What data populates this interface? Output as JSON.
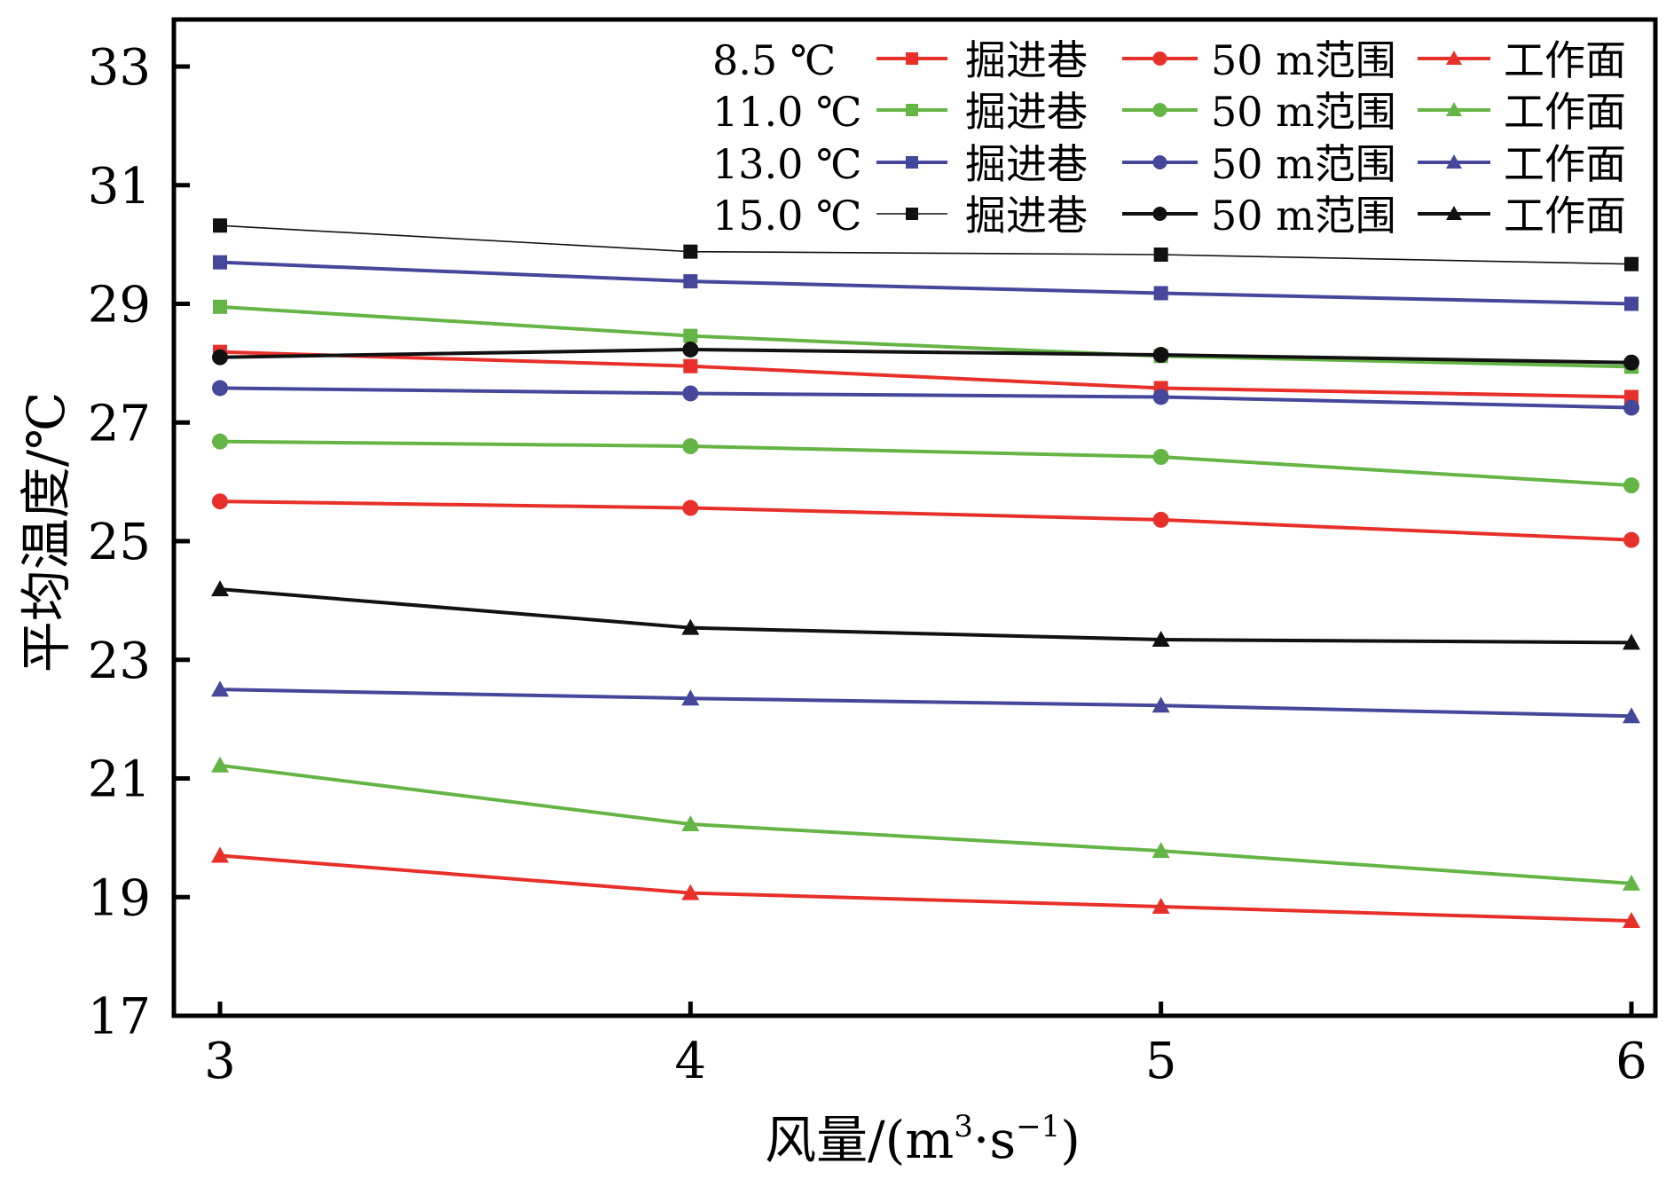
{
  "chart_data": {
    "type": "line",
    "title": "",
    "xlabel": "风量/(m³·s⁻¹)",
    "xlabel_main": "风量/(m",
    "xlabel_sup1": "3",
    "xlabel_mid": "·s",
    "xlabel_sup2": "−1",
    "xlabel_end": ")",
    "ylabel": "平均温度/℃",
    "x": [
      3,
      4,
      5,
      6
    ],
    "xlim": [
      3,
      6
    ],
    "ylim": [
      17,
      33
    ],
    "xticks": [
      "3",
      "4",
      "5",
      "6"
    ],
    "yticks": [
      "17",
      "19",
      "21",
      "23",
      "25",
      "27",
      "29",
      "31",
      "33"
    ],
    "grid": false,
    "legend_position": "top-right",
    "legend_groups": [
      "8.5 ℃",
      "11.0 ℃",
      "13.0 ℃",
      "15.0 ℃"
    ],
    "legend_types": [
      "掘进巷",
      "50 m范围",
      "工作面"
    ],
    "series": [
      {
        "name": "8.5 ℃ 掘进巷",
        "group": 0,
        "kind": 0,
        "color": "#e8302b",
        "marker": "square",
        "values": [
          28.19,
          27.95,
          27.58,
          27.43
        ]
      },
      {
        "name": "8.5 ℃ 50 m范围",
        "group": 0,
        "kind": 1,
        "color": "#e8302b",
        "marker": "circle",
        "values": [
          25.67,
          25.56,
          25.36,
          25.02
        ]
      },
      {
        "name": "8.5 ℃ 工作面",
        "group": 0,
        "kind": 2,
        "color": "#e8302b",
        "marker": "triangle",
        "values": [
          19.7,
          19.07,
          18.84,
          18.6
        ]
      },
      {
        "name": "11.0 ℃ 掘进巷",
        "group": 1,
        "kind": 0,
        "color": "#65b446",
        "marker": "square",
        "values": [
          28.95,
          28.46,
          28.12,
          27.94
        ]
      },
      {
        "name": "11.0 ℃ 50 m范围",
        "group": 1,
        "kind": 1,
        "color": "#65b446",
        "marker": "circle",
        "values": [
          26.68,
          26.6,
          26.42,
          25.94
        ]
      },
      {
        "name": "11.0 ℃ 工作面",
        "group": 1,
        "kind": 2,
        "color": "#65b446",
        "marker": "triangle",
        "values": [
          21.22,
          20.23,
          19.78,
          19.23
        ]
      },
      {
        "name": "13.0 ℃ 掘进巷",
        "group": 2,
        "kind": 0,
        "color": "#45479a",
        "marker": "square",
        "values": [
          29.7,
          29.38,
          29.18,
          29.0
        ]
      },
      {
        "name": "13.0 ℃ 50 m范围",
        "group": 2,
        "kind": 1,
        "color": "#45479a",
        "marker": "circle",
        "values": [
          27.58,
          27.49,
          27.43,
          27.25
        ]
      },
      {
        "name": "13.0 ℃ 工作面",
        "group": 2,
        "kind": 2,
        "color": "#45479a",
        "marker": "triangle",
        "values": [
          22.5,
          22.35,
          22.23,
          22.05
        ]
      },
      {
        "name": "15.0 ℃ 掘进巷",
        "group": 3,
        "kind": 0,
        "color": "#111111",
        "marker": "square",
        "thin": true,
        "values": [
          30.32,
          29.88,
          29.83,
          29.67
        ]
      },
      {
        "name": "15.0 ℃ 50 m范围",
        "group": 3,
        "kind": 1,
        "color": "#111111",
        "marker": "circle",
        "values": [
          28.1,
          28.23,
          28.14,
          28.01
        ]
      },
      {
        "name": "15.0 ℃ 工作面",
        "group": 3,
        "kind": 2,
        "color": "#111111",
        "marker": "triangle",
        "values": [
          24.19,
          23.54,
          23.34,
          23.29
        ]
      }
    ]
  }
}
